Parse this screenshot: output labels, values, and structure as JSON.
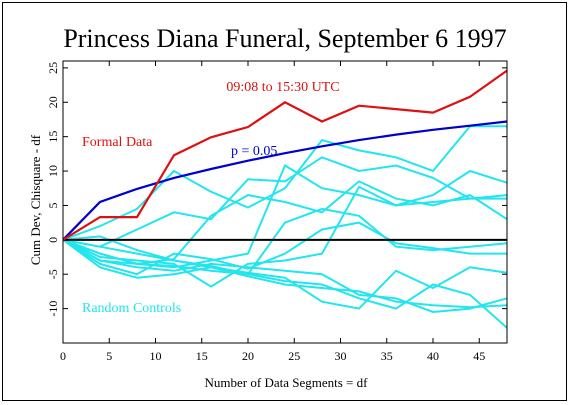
{
  "chart_data": {
    "type": "line",
    "title": "Princess Diana Funeral, September 6 1997",
    "xlabel": "Number of Data Segments = df",
    "ylabel": "Cum Dev, Chisquare - df",
    "xlim": [
      0,
      48
    ],
    "ylim": [
      -15,
      26
    ],
    "xticks": [
      0,
      5,
      10,
      15,
      20,
      25,
      30,
      35,
      40,
      45
    ],
    "yticks": [
      -10,
      -5,
      0,
      5,
      10,
      15,
      20,
      25
    ],
    "colors": {
      "formal": "#dd1111",
      "threshold": "#0000cc",
      "controls": "#22e5ee",
      "zero": "#000000"
    },
    "annotations": {
      "time_range": "09:08 to 15:30 UTC",
      "formal_label": "Formal Data",
      "p_label": "p = 0.05",
      "controls_label": "Random Controls"
    },
    "formal": {
      "x": [
        0,
        4,
        8,
        12,
        16,
        20,
        24,
        28,
        32,
        36,
        40,
        44,
        48
      ],
      "y": [
        0,
        3.3,
        3.3,
        12.3,
        14.9,
        16.4,
        20.0,
        17.2,
        19.5,
        19.0,
        18.5,
        20.8,
        24.6
      ]
    },
    "threshold": {
      "x": [
        0,
        4,
        8,
        12,
        16,
        20,
        24,
        28,
        32,
        36,
        40,
        44,
        48
      ],
      "y": [
        0,
        5.5,
        7.4,
        9.0,
        10.3,
        11.5,
        12.6,
        13.6,
        14.5,
        15.3,
        16.0,
        16.6,
        17.2
      ]
    },
    "controls": {
      "x": [
        0,
        4,
        8,
        12,
        16,
        20,
        24,
        28,
        32,
        36,
        40,
        44,
        48
      ],
      "series": [
        [
          0,
          2.0,
          4.5,
          10.0,
          7.0,
          4.7,
          7.5,
          14.5,
          13.0,
          12.0,
          10.0,
          16.5,
          16.5
        ],
        [
          0,
          -1.0,
          1.5,
          4.0,
          3.0,
          8.8,
          8.5,
          12.0,
          10.0,
          10.8,
          9.0,
          6.0,
          6.0
        ],
        [
          0,
          -3.0,
          -3.5,
          -4.0,
          -3.0,
          -2.0,
          10.8,
          7.5,
          6.5,
          5.0,
          6.5,
          10.0,
          8.3
        ],
        [
          0,
          -2.0,
          -3.5,
          -2.8,
          3.5,
          6.5,
          5.5,
          4.0,
          8.5,
          6.0,
          5.0,
          6.5,
          3.0
        ],
        [
          0,
          -1.0,
          -2.0,
          -3.0,
          -3.8,
          -5.0,
          2.5,
          4.5,
          3.5,
          -1.0,
          -1.5,
          -1.0,
          -0.5
        ],
        [
          0,
          -3.5,
          -5.0,
          -2.0,
          -2.8,
          -4.2,
          -2.0,
          1.5,
          2.5,
          -0.5,
          -1.2,
          -2.0,
          -2.0
        ],
        [
          0,
          -2.5,
          -3.0,
          -3.5,
          -6.8,
          -3.5,
          -3.0,
          -2.0,
          7.7,
          5.0,
          5.5,
          6.0,
          6.5
        ],
        [
          0,
          -4.0,
          -5.5,
          -5.0,
          -4.0,
          -4.8,
          -5.5,
          -9.0,
          -10.0,
          -4.5,
          -7.0,
          -4.0,
          -4.8
        ],
        [
          0,
          -2.0,
          -3.5,
          -3.8,
          -4.5,
          -5.0,
          -6.0,
          -6.5,
          -8.5,
          -10.0,
          -6.5,
          -8.0,
          -12.8
        ],
        [
          0,
          -3.0,
          -4.0,
          -4.5,
          -3.5,
          -4.0,
          -4.5,
          -5.0,
          -8.0,
          -8.5,
          -10.5,
          -10.0,
          -8.5
        ],
        [
          0,
          0.5,
          -1.5,
          -3.0,
          -4.0,
          -5.3,
          -6.5,
          -7.0,
          -7.5,
          -9.0,
          -9.5,
          -9.8,
          -9.5
        ]
      ]
    }
  }
}
